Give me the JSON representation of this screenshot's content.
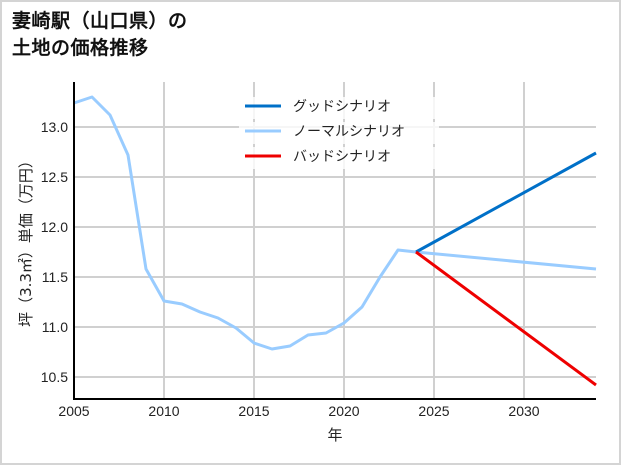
{
  "title": {
    "line1": "妻崎駅（山口県）の",
    "line2": "土地の価格推移"
  },
  "chart_data": {
    "type": "line",
    "title": "妻崎駅（山口県）の土地の価格推移",
    "xlabel": "年",
    "ylabel": "坪（3.3㎡）単価（万円）",
    "xlim": [
      2005,
      2034
    ],
    "ylim": [
      10.28,
      13.45
    ],
    "grid": true,
    "legend_position": "upper center",
    "x_ticks": [
      2005,
      2010,
      2015,
      2020,
      2025,
      2030
    ],
    "x_tick_labels": [
      "2005",
      "2010",
      "2015",
      "2020",
      "2025",
      "2030"
    ],
    "y_ticks": [
      10.5,
      11.0,
      11.5,
      12.0,
      12.5,
      13.0
    ],
    "y_tick_labels": [
      "10.5",
      "11.0",
      "11.5",
      "12.0",
      "12.5",
      "13.0"
    ],
    "series": [
      {
        "name": "グッドシナリオ",
        "color": "#0070c8",
        "x": [
          2024,
          2034
        ],
        "values": [
          11.75,
          12.74
        ]
      },
      {
        "name": "ノーマルシナリオ",
        "color": "#99ccff",
        "x": [
          2005,
          2006,
          2007,
          2008,
          2009,
          2010,
          2011,
          2012,
          2013,
          2014,
          2015,
          2016,
          2017,
          2018,
          2019,
          2020,
          2021,
          2022,
          2023,
          2024,
          2034
        ],
        "values": [
          13.24,
          13.3,
          13.12,
          12.72,
          11.58,
          11.26,
          11.23,
          11.15,
          11.09,
          10.99,
          10.84,
          10.78,
          10.81,
          10.92,
          10.94,
          11.04,
          11.2,
          11.5,
          11.77,
          11.75,
          11.58
        ]
      },
      {
        "name": "バッドシナリオ",
        "color": "#ee0000",
        "x": [
          2024,
          2034
        ],
        "values": [
          11.75,
          10.42
        ]
      }
    ]
  }
}
